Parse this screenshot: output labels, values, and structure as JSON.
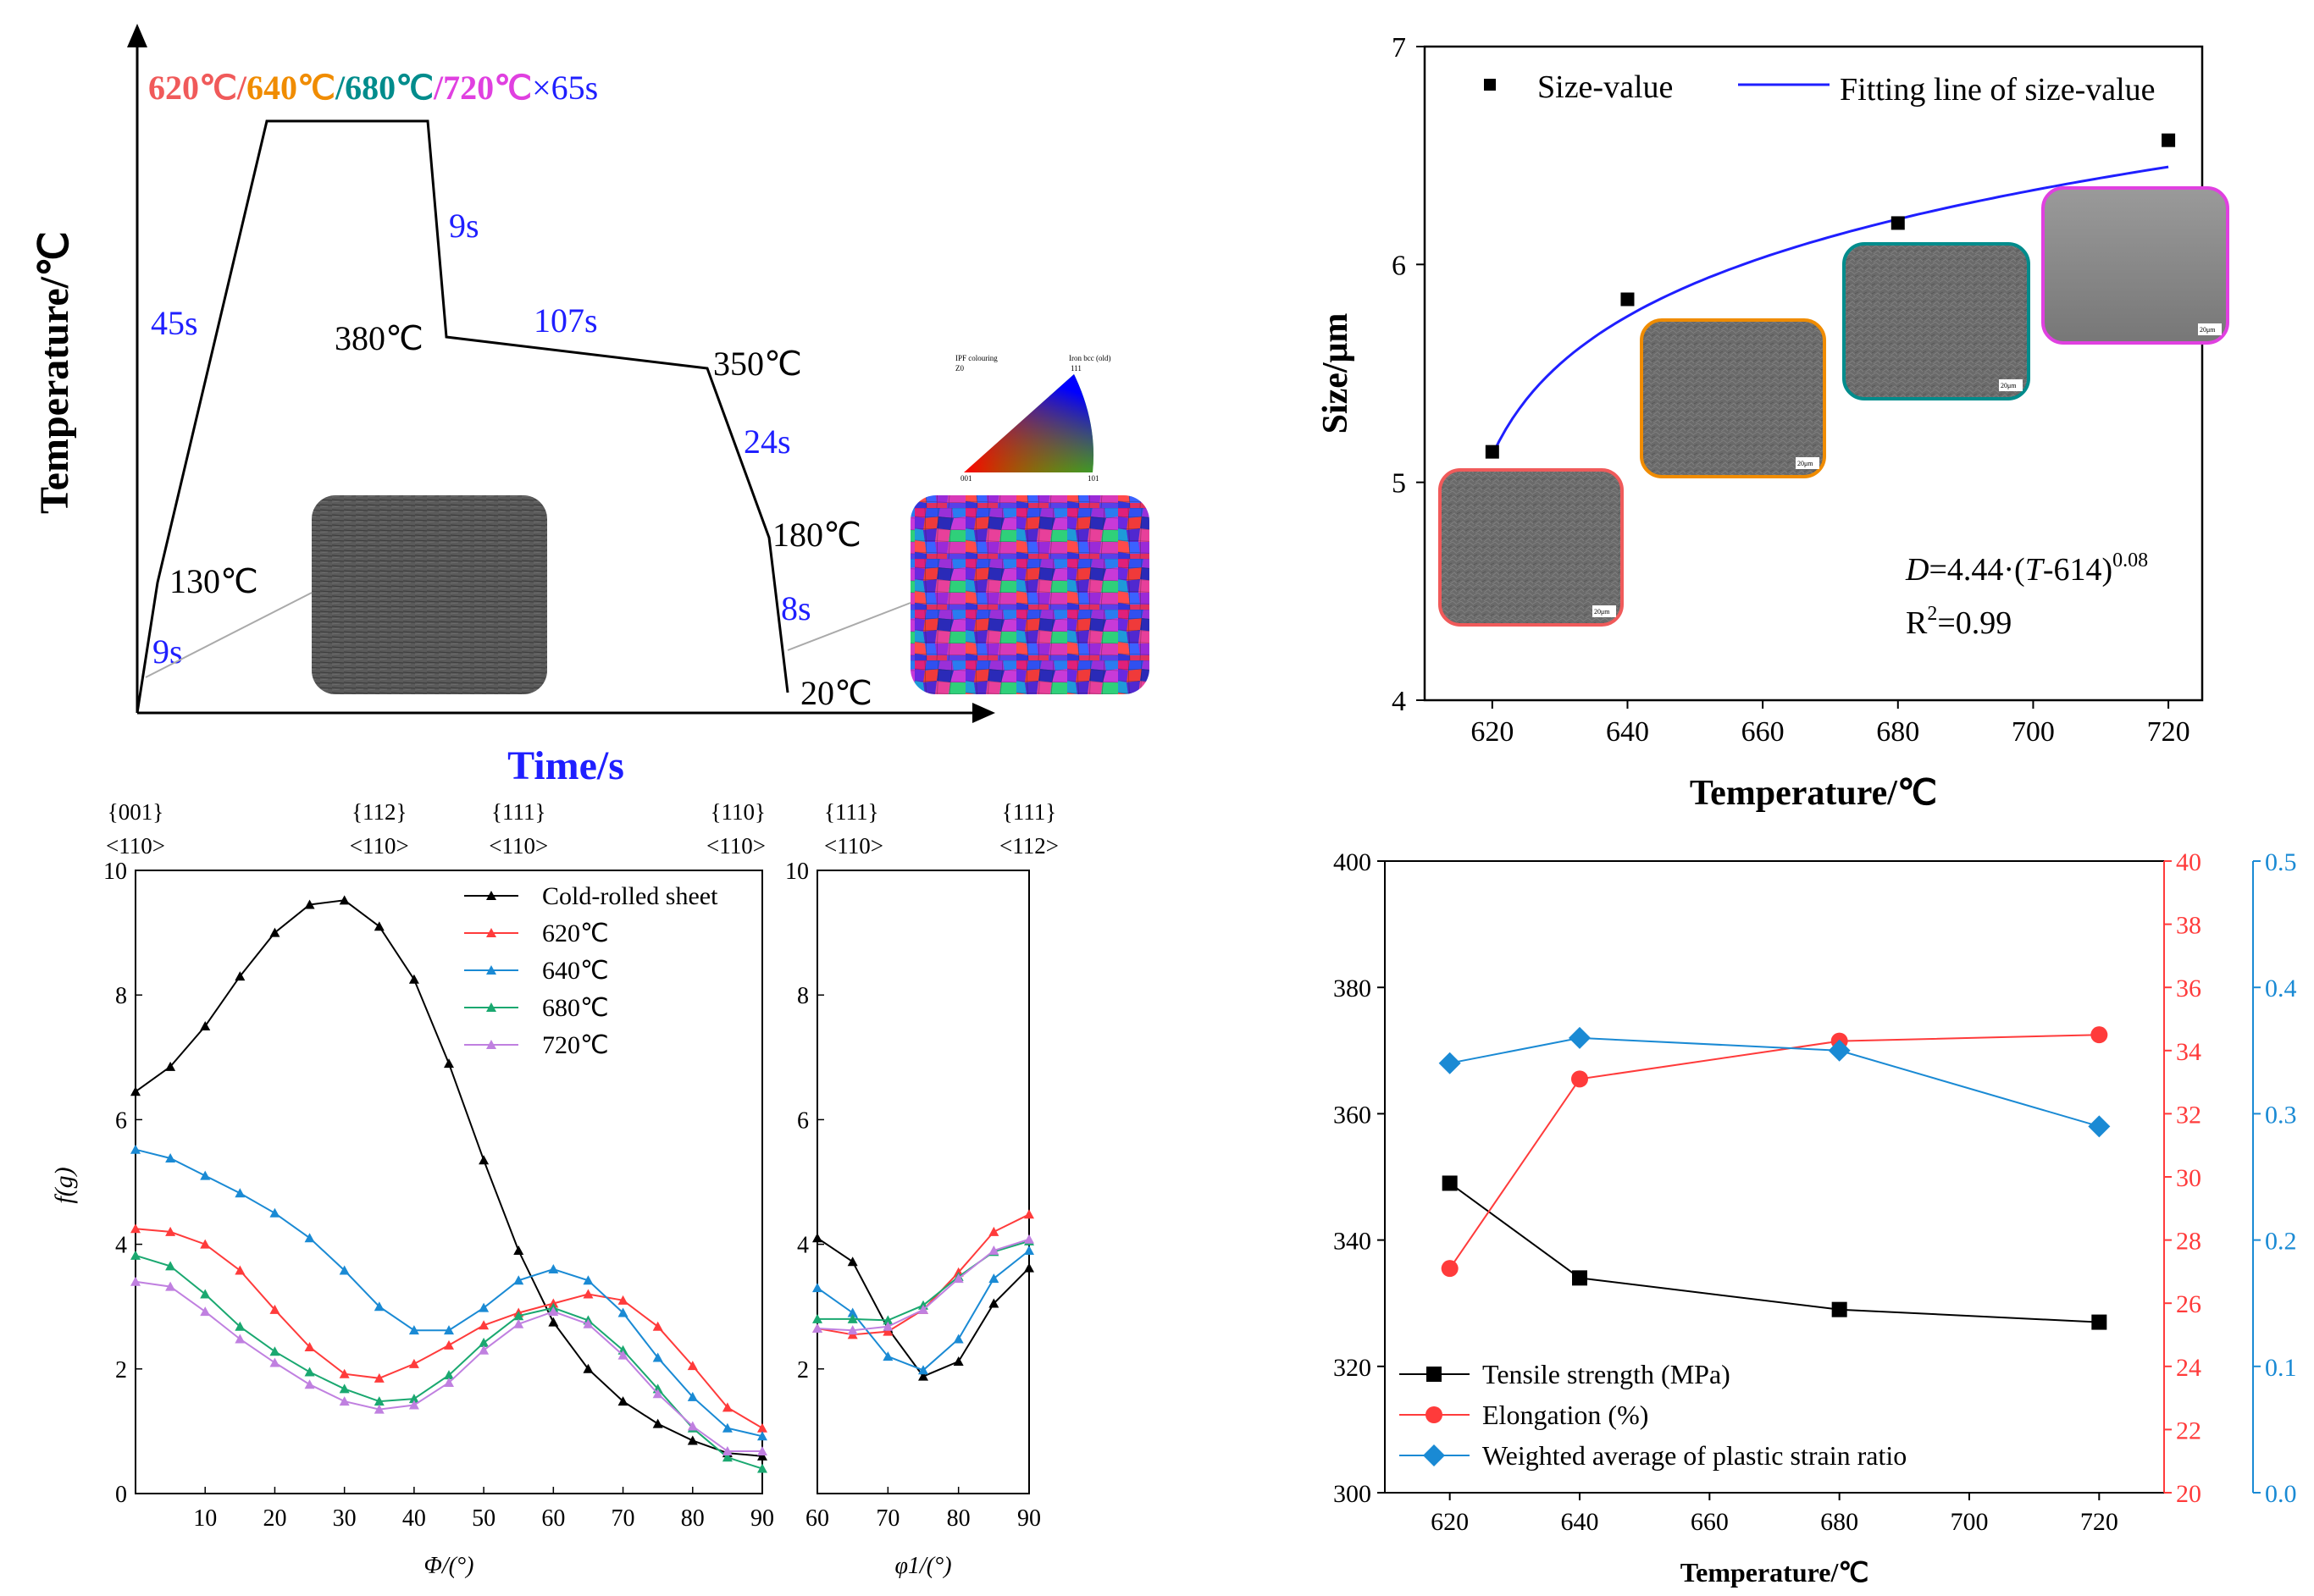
{
  "colors": {
    "c620": "#f05a5a",
    "c640": "#f08c00",
    "c680": "#008c8c",
    "c720": "#e040e0",
    "blue": "#1f1fff",
    "black": "#000000",
    "red": "#ff3b3b",
    "axisblue": "#1a8ad4"
  },
  "chart_data": [
    {
      "type": "line",
      "name": "heat-treatment-schedule",
      "title_parts": [
        "620℃",
        "/",
        "640℃",
        "/",
        "680℃",
        "/",
        "720℃",
        "×65s"
      ],
      "xlabel": "Time/s",
      "ylabel": "Temperature/℃",
      "temperature_labels": [
        "130℃",
        "380℃",
        "350℃",
        "180℃",
        "20℃"
      ],
      "time_labels": [
        "9s",
        "45s",
        "9s",
        "107s",
        "24s",
        "8s"
      ],
      "ipf_legend": {
        "title": "IPF colouring",
        "sub": "Iron bcc (old)",
        "corners": [
          "001",
          "101",
          "111"
        ],
        "zoom": "Z0"
      }
    },
    {
      "type": "scatter",
      "name": "grain-size",
      "xlabel": "Temperature/℃",
      "ylabel": "Size/μm",
      "xlim": [
        610,
        725
      ],
      "ylim": [
        4,
        7
      ],
      "xticks": [
        620,
        640,
        660,
        680,
        700,
        720
      ],
      "yticks": [
        4,
        5,
        6,
        7
      ],
      "legend": [
        "Size-value",
        "Fitting line of size-value"
      ],
      "x": [
        620,
        640,
        680,
        720
      ],
      "y": [
        5.14,
        5.84,
        6.19,
        6.57
      ],
      "fit": {
        "a": 4.44,
        "x0": 614,
        "b": 0.08
      },
      "equation": {
        "D": "D",
        "mid": "=4.44·(",
        "T": "T",
        "tail": "-614)",
        "exp": "0.08"
      },
      "r2": {
        "R": "R",
        "exp": "2",
        "val": "=0.99"
      },
      "scale_bar": "20μm"
    },
    {
      "type": "line",
      "name": "odf-orientation-density",
      "ylabel": "f(g)",
      "left": {
        "xlabel": "Φ/(°)",
        "xlim": [
          0,
          90
        ],
        "ylim": [
          0,
          10
        ],
        "xticks": [
          10,
          20,
          30,
          40,
          50,
          60,
          70,
          80,
          90
        ],
        "yticks": [
          0,
          2,
          4,
          6,
          8,
          10
        ],
        "top_labels": [
          {
            "at": 0,
            "plane": "{001}",
            "dir": "<110>"
          },
          {
            "at": 35,
            "plane": "{112}",
            "dir": "<110>"
          },
          {
            "at": 55,
            "plane": "{111}",
            "dir": "<110>"
          },
          {
            "at": 90,
            "plane": "{110}",
            "dir": "<110>"
          }
        ],
        "x": [
          0,
          5,
          10,
          15,
          20,
          25,
          30,
          35,
          40,
          45,
          50,
          55,
          60,
          65,
          70,
          75,
          80,
          85,
          90
        ],
        "series": [
          {
            "name": "Cold-rolled sheet",
            "values": [
              6.45,
              6.85,
              7.5,
              8.3,
              9.0,
              9.45,
              9.52,
              9.1,
              8.25,
              6.9,
              5.35,
              3.9,
              2.75,
              2.0,
              1.48,
              1.12,
              0.85,
              0.65,
              0.6
            ]
          },
          {
            "name": "620℃",
            "values": [
              4.25,
              4.2,
              4.0,
              3.58,
              2.95,
              2.35,
              1.92,
              1.85,
              2.08,
              2.38,
              2.7,
              2.9,
              3.05,
              3.2,
              3.1,
              2.68,
              2.05,
              1.38,
              1.05
            ]
          },
          {
            "name": "640℃",
            "values": [
              5.52,
              5.38,
              5.1,
              4.82,
              4.5,
              4.1,
              3.58,
              3.0,
              2.62,
              2.62,
              2.98,
              3.42,
              3.6,
              3.42,
              2.9,
              2.18,
              1.55,
              1.05,
              0.92
            ]
          },
          {
            "name": "680℃",
            "values": [
              3.82,
              3.65,
              3.2,
              2.68,
              2.28,
              1.95,
              1.68,
              1.48,
              1.52,
              1.9,
              2.42,
              2.85,
              2.98,
              2.78,
              2.3,
              1.68,
              1.05,
              0.58,
              0.4
            ]
          },
          {
            "name": "720℃",
            "values": [
              3.4,
              3.32,
              2.92,
              2.48,
              2.1,
              1.75,
              1.48,
              1.35,
              1.42,
              1.78,
              2.3,
              2.72,
              2.92,
              2.72,
              2.22,
              1.6,
              1.08,
              0.68,
              0.68
            ]
          }
        ]
      },
      "right": {
        "xlabel": "φ1/(°)",
        "xlim": [
          60,
          90
        ],
        "ylim": [
          0,
          10
        ],
        "xticks": [
          60,
          70,
          80,
          90
        ],
        "yticks": [
          2,
          4,
          6,
          8,
          10
        ],
        "top_labels": [
          {
            "at": 60,
            "plane": "{111}",
            "dir": "<110>"
          },
          {
            "at": 90,
            "plane": "{111}",
            "dir": "<112>"
          }
        ],
        "x": [
          60,
          65,
          70,
          75,
          80,
          85,
          90
        ],
        "series": [
          {
            "name": "Cold-rolled sheet",
            "values": [
              4.1,
              3.72,
              2.65,
              1.88,
              2.12,
              3.05,
              3.62
            ]
          },
          {
            "name": "620℃",
            "values": [
              2.65,
              2.55,
              2.6,
              2.95,
              3.55,
              4.2,
              4.48
            ]
          },
          {
            "name": "640℃",
            "values": [
              3.3,
              2.9,
              2.2,
              1.98,
              2.48,
              3.45,
              3.9
            ]
          },
          {
            "name": "680℃",
            "values": [
              2.8,
              2.8,
              2.78,
              3.02,
              3.48,
              3.88,
              4.05
            ]
          },
          {
            "name": "720℃",
            "values": [
              2.65,
              2.62,
              2.68,
              2.95,
              3.45,
              3.9,
              4.08
            ]
          }
        ]
      }
    },
    {
      "type": "line",
      "name": "mechanical-properties",
      "xlabel": "Temperature/℃",
      "xlim": [
        610,
        730
      ],
      "xticks": [
        620,
        640,
        660,
        680,
        700,
        720
      ],
      "y_left": {
        "lim": [
          300,
          400
        ],
        "ticks": [
          300,
          320,
          340,
          360,
          380,
          400
        ]
      },
      "y_right1": {
        "lim": [
          20,
          40
        ],
        "ticks": [
          20,
          22,
          24,
          26,
          28,
          30,
          32,
          34,
          36,
          38,
          40
        ]
      },
      "y_right2": {
        "lim": [
          0.0,
          0.5
        ],
        "ticks": [
          "0.0",
          "0.1",
          "0.2",
          "0.3",
          "0.4",
          "0.5"
        ]
      },
      "x": [
        620,
        640,
        680,
        720
      ],
      "series": [
        {
          "name": "Tensile strength (MPa)",
          "axis": "left",
          "values": [
            349,
            334,
            329,
            327
          ]
        },
        {
          "name": "Elongation (%)",
          "axis": "right1",
          "values": [
            27.1,
            33.1,
            34.3,
            34.5
          ]
        },
        {
          "name": "Weighted average of plastic strain ratio",
          "axis": "right2",
          "values": [
            0.34,
            0.36,
            0.35,
            0.29
          ]
        }
      ]
    }
  ]
}
